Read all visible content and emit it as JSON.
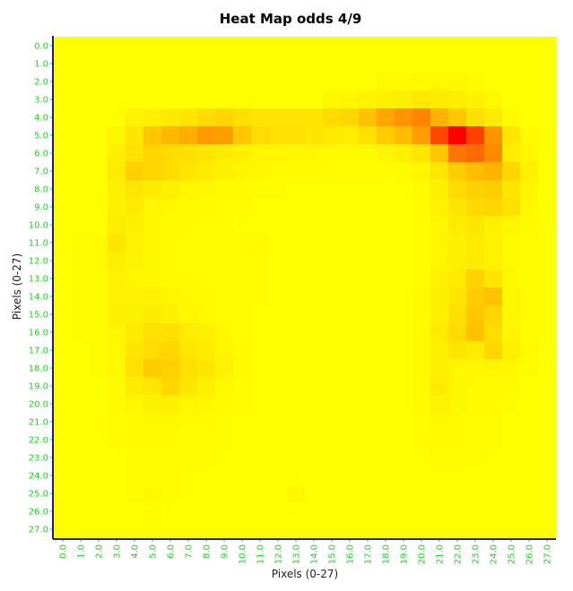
{
  "chart_data": {
    "type": "heatmap",
    "title": "Heat Map odds 4/9",
    "xlabel": "Pixels (0-27)",
    "ylabel": "Pixels (0-27)",
    "x_ticks": [
      "0.0",
      "1.0",
      "2.0",
      "3.0",
      "4.0",
      "5.0",
      "6.0",
      "7.0",
      "8.0",
      "9.0",
      "10.0",
      "11.0",
      "12.0",
      "13.0",
      "14.0",
      "15.0",
      "16.0",
      "17.0",
      "18.0",
      "19.0",
      "20.0",
      "21.0",
      "22.0",
      "23.0",
      "24.0",
      "25.0",
      "26.0",
      "27.0"
    ],
    "y_ticks": [
      "0.0",
      "1.0",
      "2.0",
      "3.0",
      "4.0",
      "5.0",
      "6.0",
      "7.0",
      "8.0",
      "9.0",
      "10.0",
      "11.0",
      "12.0",
      "13.0",
      "14.0",
      "15.0",
      "16.0",
      "17.0",
      "18.0",
      "19.0",
      "20.0",
      "21.0",
      "22.0",
      "23.0",
      "24.0",
      "25.0",
      "26.0",
      "27.0"
    ],
    "color_low": "#ffff00",
    "color_high": "#ff0000",
    "grid": false,
    "legend": "none",
    "values": [
      [
        0,
        0,
        0,
        0,
        0,
        0,
        0,
        0,
        0,
        0,
        0,
        0,
        0,
        0,
        0,
        0,
        0,
        0,
        0,
        0,
        0,
        0,
        0,
        0,
        0,
        0,
        0,
        0
      ],
      [
        0,
        0,
        0,
        0,
        0,
        0,
        0,
        0,
        0,
        0,
        0,
        0,
        0,
        0,
        0,
        0,
        0,
        0,
        0,
        0,
        0,
        0,
        0,
        0,
        0,
        0,
        0,
        0
      ],
      [
        0,
        0,
        0,
        0,
        0,
        0,
        0,
        0,
        0,
        0,
        0,
        0,
        0,
        0,
        0,
        0,
        0,
        0,
        0.02,
        0.02,
        0.03,
        0.03,
        0.03,
        0.02,
        0,
        0,
        0,
        0
      ],
      [
        0,
        0,
        0,
        0,
        0,
        0,
        0,
        0,
        0,
        0,
        0,
        0,
        0,
        0,
        0,
        0.03,
        0.04,
        0.05,
        0.06,
        0.07,
        0.09,
        0.08,
        0.07,
        0.05,
        0.03,
        0,
        0,
        0
      ],
      [
        0,
        0,
        0,
        0,
        0.05,
        0.06,
        0.08,
        0.1,
        0.14,
        0.16,
        0.13,
        0.1,
        0.1,
        0.1,
        0.1,
        0.14,
        0.16,
        0.24,
        0.35,
        0.42,
        0.48,
        0.3,
        0.22,
        0.12,
        0.08,
        0.02,
        0,
        0
      ],
      [
        0,
        0,
        0,
        0.04,
        0.1,
        0.22,
        0.28,
        0.32,
        0.4,
        0.38,
        0.22,
        0.14,
        0.12,
        0.12,
        0.1,
        0.08,
        0.07,
        0.12,
        0.2,
        0.26,
        0.38,
        0.72,
        1.0,
        0.75,
        0.42,
        0.1,
        0.02,
        0
      ],
      [
        0,
        0,
        0,
        0.06,
        0.12,
        0.16,
        0.14,
        0.12,
        0.1,
        0.08,
        0.06,
        0.04,
        0.04,
        0.03,
        0.03,
        0.02,
        0.02,
        0.02,
        0.04,
        0.06,
        0.1,
        0.22,
        0.54,
        0.58,
        0.46,
        0.08,
        0.03,
        0
      ],
      [
        0,
        0,
        0,
        0.08,
        0.18,
        0.16,
        0.14,
        0.1,
        0.08,
        0.06,
        0.04,
        0.03,
        0.02,
        0.02,
        0.02,
        0.01,
        0.01,
        0.01,
        0.01,
        0.02,
        0.04,
        0.1,
        0.2,
        0.26,
        0.3,
        0.16,
        0.06,
        0
      ],
      [
        0,
        0,
        0,
        0.06,
        0.1,
        0.08,
        0.06,
        0.04,
        0.03,
        0.02,
        0.02,
        0.01,
        0.01,
        0,
        0,
        0,
        0,
        0,
        0,
        0,
        0.02,
        0.06,
        0.14,
        0.18,
        0.2,
        0.1,
        0.04,
        0
      ],
      [
        0,
        0,
        0,
        0.06,
        0.08,
        0.04,
        0.03,
        0.02,
        0.02,
        0.01,
        0.01,
        0,
        0,
        0,
        0,
        0,
        0,
        0,
        0,
        0,
        0.01,
        0.05,
        0.1,
        0.14,
        0.16,
        0.12,
        0.03,
        0
      ],
      [
        0,
        0,
        0,
        0.07,
        0.06,
        0.03,
        0.02,
        0.02,
        0.01,
        0.01,
        0,
        0,
        0,
        0,
        0,
        0,
        0,
        0,
        0,
        0,
        0.01,
        0.04,
        0.08,
        0.1,
        0.06,
        0.04,
        0.02,
        0
      ],
      [
        0,
        0.01,
        0.02,
        0.1,
        0.05,
        0.03,
        0.02,
        0.01,
        0.01,
        0.01,
        0.01,
        0.02,
        0,
        0,
        0,
        0,
        0,
        0,
        0,
        0,
        0.01,
        0.04,
        0.06,
        0.08,
        0.05,
        0.02,
        0.01,
        0
      ],
      [
        0,
        0.01,
        0.02,
        0.07,
        0.05,
        0.03,
        0.02,
        0.01,
        0.01,
        0.01,
        0.01,
        0.01,
        0,
        0,
        0,
        0,
        0,
        0,
        0,
        0,
        0.01,
        0.04,
        0.06,
        0.08,
        0.05,
        0.02,
        0.01,
        0
      ],
      [
        0,
        0.01,
        0.01,
        0.05,
        0.04,
        0.03,
        0.02,
        0.02,
        0.01,
        0.01,
        0.01,
        0.01,
        0,
        0,
        0,
        0,
        0,
        0,
        0,
        0,
        0.01,
        0.05,
        0.08,
        0.18,
        0.1,
        0.03,
        0.01,
        0
      ],
      [
        0,
        0.01,
        0.01,
        0.05,
        0.05,
        0.05,
        0.04,
        0.03,
        0.02,
        0.01,
        0.01,
        0.01,
        0,
        0,
        0,
        0,
        0,
        0,
        0,
        0,
        0.02,
        0.06,
        0.1,
        0.2,
        0.24,
        0.04,
        0.01,
        0
      ],
      [
        0,
        0.01,
        0.01,
        0.06,
        0.06,
        0.08,
        0.06,
        0.04,
        0.02,
        0.01,
        0.01,
        0,
        0,
        0,
        0,
        0,
        0,
        0,
        0,
        0,
        0.02,
        0.06,
        0.12,
        0.22,
        0.16,
        0.04,
        0.01,
        0
      ],
      [
        0,
        0.01,
        0.01,
        0.04,
        0.08,
        0.12,
        0.12,
        0.08,
        0.06,
        0.03,
        0.01,
        0,
        0,
        0,
        0,
        0,
        0,
        0,
        0,
        0,
        0.02,
        0.08,
        0.14,
        0.24,
        0.14,
        0.04,
        0.01,
        0
      ],
      [
        0,
        0,
        0.01,
        0.03,
        0.1,
        0.14,
        0.16,
        0.1,
        0.08,
        0.04,
        0.02,
        0,
        0,
        0,
        0,
        0,
        0,
        0,
        0,
        0,
        0.02,
        0.06,
        0.1,
        0.08,
        0.16,
        0.06,
        0.02,
        0
      ],
      [
        0,
        0,
        0.01,
        0.03,
        0.12,
        0.2,
        0.18,
        0.12,
        0.1,
        0.05,
        0.02,
        0,
        0,
        0,
        0,
        0,
        0,
        0,
        0,
        0,
        0.02,
        0.06,
        0.04,
        0.03,
        0.04,
        0.03,
        0.01,
        0
      ],
      [
        0,
        0,
        0,
        0.02,
        0.08,
        0.1,
        0.16,
        0.1,
        0.06,
        0.03,
        0.01,
        0,
        0,
        0,
        0,
        0,
        0,
        0,
        0,
        0,
        0.02,
        0.08,
        0.04,
        0.02,
        0.02,
        0.02,
        0,
        0
      ],
      [
        0,
        0,
        0,
        0.02,
        0.04,
        0.06,
        0.06,
        0.04,
        0.03,
        0.02,
        0.01,
        0,
        0,
        0,
        0,
        0,
        0,
        0,
        0,
        0,
        0.02,
        0.05,
        0.03,
        0.02,
        0.02,
        0.01,
        0,
        0
      ],
      [
        0,
        0,
        0,
        0.01,
        0.02,
        0.03,
        0.03,
        0.02,
        0.02,
        0.01,
        0,
        0,
        0,
        0,
        0,
        0,
        0,
        0,
        0,
        0,
        0.01,
        0.03,
        0.02,
        0.01,
        0.01,
        0,
        0,
        0
      ],
      [
        0,
        0,
        0,
        0.01,
        0.02,
        0.02,
        0.02,
        0.01,
        0.01,
        0.01,
        0,
        0,
        0,
        0,
        0,
        0,
        0,
        0,
        0,
        0,
        0.01,
        0.02,
        0.02,
        0.01,
        0.01,
        0,
        0,
        0
      ],
      [
        0,
        0,
        0,
        0,
        0.01,
        0.01,
        0.01,
        0.01,
        0.01,
        0,
        0,
        0,
        0,
        0,
        0,
        0,
        0,
        0,
        0,
        0,
        0,
        0.01,
        0.01,
        0.01,
        0,
        0,
        0,
        0
      ],
      [
        0,
        0,
        0,
        0,
        0.01,
        0.01,
        0.01,
        0,
        0,
        0,
        0,
        0,
        0,
        0,
        0,
        0,
        0,
        0,
        0,
        0,
        0,
        0,
        0,
        0,
        0,
        0,
        0,
        0
      ],
      [
        0,
        0,
        0,
        0,
        0.01,
        0.03,
        0.01,
        0,
        0,
        0,
        0,
        0,
        0,
        0.03,
        0,
        0,
        0,
        0,
        0,
        0,
        0,
        0,
        0,
        0,
        0,
        0,
        0,
        0
      ],
      [
        0,
        0,
        0,
        0,
        0,
        0.01,
        0,
        0,
        0,
        0,
        0,
        0,
        0,
        0,
        0,
        0,
        0,
        0,
        0,
        0,
        0,
        0,
        0,
        0,
        0,
        0,
        0,
        0
      ],
      [
        0,
        0,
        0,
        0,
        0,
        0,
        0,
        0,
        0,
        0,
        0,
        0,
        0,
        0,
        0,
        0,
        0,
        0,
        0,
        0,
        0,
        0,
        0,
        0,
        0,
        0,
        0,
        0
      ]
    ]
  }
}
